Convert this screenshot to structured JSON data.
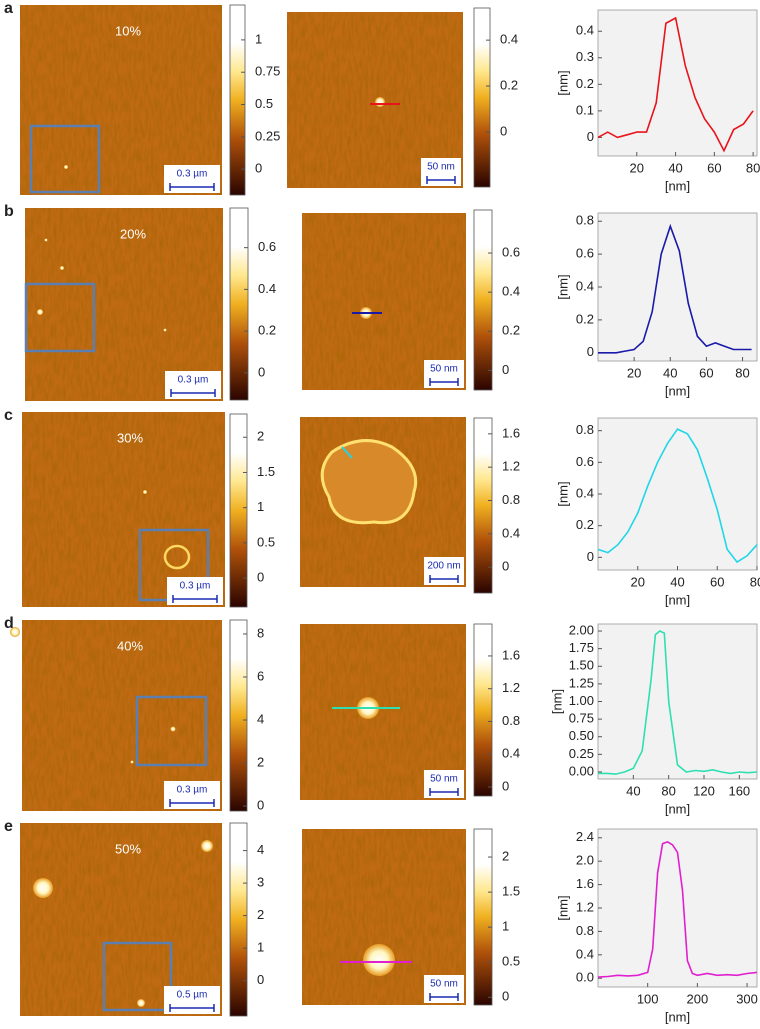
{
  "panels": [
    {
      "label": "a",
      "concentration": "10%",
      "scale_left": "0.3 µm",
      "scale_mid": "50 nm",
      "colorbar_left": {
        "lim": [
          -0.2,
          1.27
        ],
        "ticks": [
          0,
          0.25,
          0.5,
          0.75,
          1
        ]
      },
      "colorbar_mid": {
        "lim": [
          -0.24,
          0.54
        ],
        "ticks": [
          0,
          0.2,
          0.4
        ]
      }
    },
    {
      "label": "b",
      "concentration": "20%",
      "scale_left": "0.3 µm",
      "scale_mid": "50 nm",
      "colorbar_left": {
        "lim": [
          -0.13,
          0.79
        ],
        "ticks": [
          0,
          0.2,
          0.4,
          0.6
        ]
      },
      "colorbar_mid": {
        "lim": [
          -0.1,
          0.82
        ],
        "ticks": [
          0,
          0.2,
          0.4,
          0.6
        ]
      }
    },
    {
      "label": "c",
      "concentration": "30%",
      "scale_left": "0.3 µm",
      "scale_mid": "200 nm",
      "colorbar_left": {
        "lim": [
          -0.41,
          2.33
        ],
        "ticks": [
          0,
          0.5,
          1,
          1.5,
          2
        ]
      },
      "colorbar_mid": {
        "lim": [
          -0.31,
          1.79
        ],
        "ticks": [
          0,
          0.4,
          0.8,
          1.2,
          1.6
        ]
      }
    },
    {
      "label": "d",
      "concentration": "40%",
      "scale_left": "0.3 µm",
      "scale_mid": "50 nm",
      "colorbar_left": {
        "lim": [
          -0.23,
          8.65
        ],
        "ticks": [
          0,
          2,
          4,
          6,
          8
        ]
      },
      "colorbar_mid": {
        "lim": [
          -0.11,
          1.99
        ],
        "ticks": [
          0,
          0.4,
          0.8,
          1.2,
          1.6
        ]
      }
    },
    {
      "label": "e",
      "concentration": "50%",
      "scale_left": "0.5 µm",
      "scale_mid": "50 nm",
      "colorbar_left": {
        "lim": [
          -1.09,
          4.85
        ],
        "ticks": [
          0,
          1,
          2,
          3,
          4
        ]
      },
      "colorbar_mid": {
        "lim": [
          -0.11,
          2.4
        ],
        "ticks": [
          0,
          0.5,
          1,
          1.5,
          2
        ]
      }
    }
  ],
  "chart_data": [
    {
      "type": "line",
      "xlabel": "[nm]",
      "ylabel": "[nm]",
      "color": "#e8141c",
      "x": [
        0,
        5,
        10,
        15,
        20,
        25,
        30,
        35,
        40,
        45,
        50,
        55,
        60,
        65,
        70,
        75,
        80
      ],
      "values": [
        0,
        0.02,
        0,
        0.01,
        0.02,
        0.02,
        0.13,
        0.43,
        0.45,
        0.27,
        0.15,
        0.07,
        0.02,
        -0.05,
        0.03,
        0.05,
        0.1
      ],
      "xlim": [
        0,
        82
      ],
      "xticks": [
        20,
        40,
        60,
        80
      ],
      "ylim": [
        -0.07,
        0.48
      ],
      "yticks": [
        0,
        0.1,
        0.2,
        0.3,
        0.4
      ]
    },
    {
      "type": "line",
      "xlabel": "[nm]",
      "ylabel": "[nm]",
      "color": "#1a1aa8",
      "x": [
        0,
        5,
        10,
        15,
        20,
        25,
        30,
        35,
        40,
        45,
        50,
        55,
        60,
        65,
        70,
        75,
        80,
        85
      ],
      "values": [
        0,
        0,
        0,
        0.01,
        0.02,
        0.07,
        0.25,
        0.6,
        0.77,
        0.62,
        0.3,
        0.1,
        0.04,
        0.06,
        0.04,
        0.02,
        0.02,
        0.02
      ],
      "xlim": [
        0,
        88
      ],
      "xticks": [
        20,
        40,
        60,
        80
      ],
      "ylim": [
        -0.05,
        0.85
      ],
      "yticks": [
        0,
        0.2,
        0.4,
        0.6,
        0.8
      ]
    },
    {
      "type": "line",
      "xlabel": "[nm]",
      "ylabel": "[nm]",
      "color": "#1fd6e8",
      "x": [
        0,
        5,
        10,
        15,
        20,
        25,
        30,
        35,
        40,
        45,
        50,
        55,
        60,
        65,
        70,
        75,
        80
      ],
      "values": [
        0.05,
        0.03,
        0.08,
        0.16,
        0.28,
        0.45,
        0.6,
        0.72,
        0.81,
        0.78,
        0.68,
        0.5,
        0.3,
        0.05,
        -0.03,
        0.01,
        0.08
      ],
      "xlim": [
        0,
        80
      ],
      "xticks": [
        20,
        40,
        60,
        80
      ],
      "ylim": [
        -0.08,
        0.88
      ],
      "yticks": [
        0,
        0.2,
        0.4,
        0.6,
        0.8
      ]
    },
    {
      "type": "line",
      "xlabel": "[nm]",
      "ylabel": "[nm]",
      "color": "#2ee0b0",
      "x": [
        0,
        10,
        20,
        30,
        40,
        50,
        60,
        65,
        70,
        75,
        80,
        90,
        100,
        110,
        120,
        130,
        140,
        150,
        160,
        170,
        180
      ],
      "values": [
        -0.02,
        -0.02,
        -0.03,
        0,
        0.05,
        0.3,
        1.3,
        1.95,
        2.0,
        1.97,
        1.0,
        0.1,
        0,
        0.02,
        0.01,
        0.03,
        0,
        -0.02,
        0,
        -0.01,
        0
      ],
      "xlim": [
        0,
        180
      ],
      "xticks": [
        40,
        80,
        120,
        160
      ],
      "ylim": [
        -0.1,
        2.1
      ],
      "yticks": [
        {
          "value": 0,
          "label": "0.00"
        },
        0.25,
        {
          "value": 0.5,
          "label": "0.50"
        },
        0.75,
        {
          "value": 1,
          "label": "1.00"
        },
        1.25,
        {
          "value": 1.5,
          "label": "1.50"
        },
        1.75,
        {
          "value": 2,
          "label": "2.00"
        }
      ]
    },
    {
      "type": "line",
      "xlabel": "[nm]",
      "ylabel": "[nm]",
      "color": "#e020d0",
      "x": [
        0,
        20,
        40,
        60,
        80,
        100,
        110,
        120,
        130,
        140,
        150,
        160,
        170,
        180,
        190,
        200,
        220,
        240,
        260,
        280,
        300,
        320
      ],
      "values": [
        0.02,
        0.03,
        0.05,
        0.04,
        0.05,
        0.1,
        0.5,
        1.8,
        2.3,
        2.33,
        2.28,
        2.15,
        1.5,
        0.3,
        0.08,
        0.05,
        0.08,
        0.05,
        0.06,
        0.05,
        0.08,
        0.1
      ],
      "xlim": [
        0,
        320
      ],
      "xticks": [
        100,
        200,
        300
      ],
      "ylim": [
        -0.15,
        2.55
      ],
      "yticks": [
        {
          "value": 0,
          "label": "0.0"
        },
        0.4,
        0.8,
        1.2,
        1.6,
        {
          "value": 2,
          "label": "2.0"
        },
        2.4
      ]
    }
  ]
}
